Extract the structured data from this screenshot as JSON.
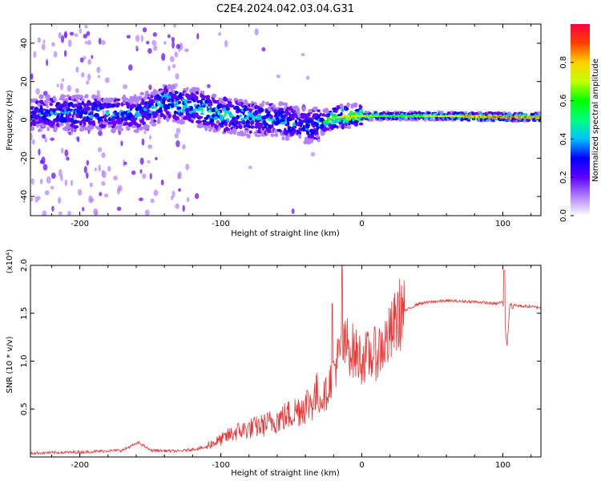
{
  "figure_title": "C2E4.2024.042.03.04.G31",
  "chart_data": [
    {
      "type": "heatmap",
      "title": "C2E4.2024.042.03.04.G31",
      "xlabel": "Height of straight line (km)",
      "ylabel": "Frequency (Hz)",
      "xlim": [
        -235,
        127
      ],
      "ylim": [
        -50,
        50
      ],
      "xticks": [
        -200,
        -100,
        0,
        100
      ],
      "xtick_labels": [
        "-200",
        "-100",
        "0",
        "100"
      ],
      "yticks": [
        -40,
        -20,
        0,
        20,
        40
      ],
      "ytick_labels": [
        "-40",
        "-20",
        "0",
        "20",
        "40"
      ],
      "colorbar": {
        "label": "Normalized spectral amplitude",
        "range": [
          0,
          1
        ],
        "ticks": [
          0.0,
          0.2,
          0.4,
          0.6,
          0.8
        ],
        "tick_labels": [
          "0.0",
          "0.2",
          "0.4",
          "0.6",
          "0.8"
        ],
        "colormap": [
          "#ffffff",
          "#b080ff",
          "#6000ff",
          "#0000ff",
          "#00c0ff",
          "#00ff80",
          "#00ff00",
          "#c0ff00",
          "#ffd000",
          "#ff4000",
          "#ff0040"
        ]
      },
      "ridge": {
        "description_points_x": [
          -235,
          -200,
          -160,
          -140,
          -120,
          -100,
          -80,
          -60,
          -40,
          -30,
          -20,
          -10,
          0,
          20,
          60,
          100,
          127
        ],
        "frequency_center": [
          3,
          4,
          3,
          9,
          7,
          3,
          1,
          0,
          -3,
          -2,
          1,
          2,
          2,
          2,
          2,
          1.5,
          1.5
        ],
        "peak_amplitude": [
          0.35,
          0.45,
          0.4,
          0.5,
          0.5,
          0.55,
          0.5,
          0.45,
          0.4,
          0.5,
          0.7,
          0.8,
          0.75,
          0.6,
          0.75,
          0.9,
          0.85
        ]
      },
      "noise_bands_x": [
        [
          -235,
          -180
        ],
        [
          -160,
          -145
        ],
        [
          -140,
          -125
        ]
      ]
    },
    {
      "type": "line",
      "xlabel": "Height of straight line (km)",
      "ylabel": "SNR (10 * v/v)",
      "y_scale_note": "(x10⁴)",
      "xlim": [
        -235,
        127
      ],
      "ylim": [
        0,
        2.0
      ],
      "xticks": [
        -200,
        -100,
        0,
        100
      ],
      "xtick_labels": [
        "-200",
        "-100",
        "0",
        "100"
      ],
      "yticks": [
        0.5,
        1.0,
        1.5,
        2.0
      ],
      "ytick_labels": [
        "0.5",
        "1.0",
        "1.5",
        "2.0"
      ],
      "series": [
        {
          "name": "SNR",
          "color": "#ee3333",
          "x": [
            -235,
            -200,
            -170,
            -158,
            -150,
            -130,
            -110,
            -100,
            -90,
            -70,
            -50,
            -35,
            -25,
            -20,
            -15,
            -10,
            -5,
            0,
            10,
            20,
            25,
            30,
            40,
            50,
            60,
            80,
            95,
            100,
            103,
            105,
            110,
            127
          ],
          "y": [
            0.04,
            0.05,
            0.07,
            0.15,
            0.07,
            0.06,
            0.1,
            0.15,
            0.22,
            0.28,
            0.38,
            0.5,
            0.65,
            0.9,
            1.05,
            1.15,
            1.05,
            1.0,
            1.05,
            1.22,
            1.4,
            1.52,
            1.6,
            1.62,
            1.63,
            1.62,
            1.6,
            1.62,
            1.15,
            1.6,
            1.58,
            1.56
          ]
        }
      ],
      "notable_spikes": [
        {
          "x": -21,
          "y": 1.6
        },
        {
          "x": -14,
          "y": 2.0
        },
        {
          "x": 101,
          "y": 1.95
        },
        {
          "x": 107,
          "y": 1.55
        }
      ]
    }
  ]
}
